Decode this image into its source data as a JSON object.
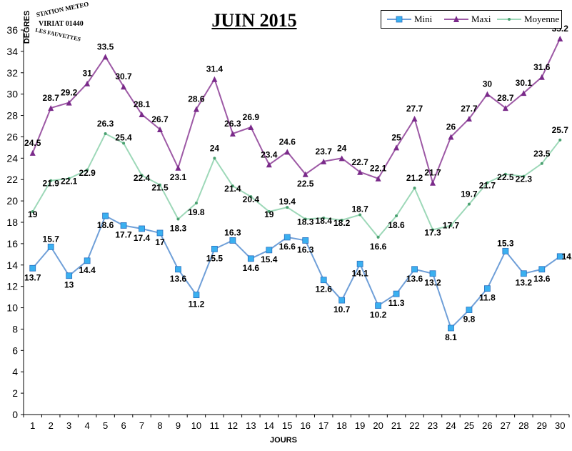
{
  "stamp": {
    "line1": "STATION METEO",
    "line2": "VIRIAT 01440",
    "line3": "LES FAUVETTES"
  },
  "chart_data": {
    "type": "line",
    "title": "JUIN 2015",
    "xlabel": "JOURS",
    "ylabel": "DEGRES",
    "categories": [
      "1",
      "2",
      "3",
      "4",
      "5",
      "6",
      "7",
      "8",
      "9",
      "10",
      "11",
      "12",
      "13",
      "14",
      "15",
      "16",
      "17",
      "18",
      "19",
      "20",
      "21",
      "22",
      "23",
      "24",
      "25",
      "26",
      "27",
      "28",
      "29",
      "30"
    ],
    "ylim": [
      0,
      36
    ],
    "yticks": [
      0,
      2,
      4,
      6,
      8,
      10,
      12,
      14,
      16,
      18,
      20,
      22,
      24,
      26,
      28,
      30,
      32,
      34,
      36
    ],
    "grid": false,
    "legend_position": "top-right",
    "series": [
      {
        "name": "Mini",
        "color": "#6f9fd8",
        "marker": "square",
        "values": [
          13.7,
          15.7,
          13,
          14.4,
          18.6,
          17.7,
          17.4,
          17,
          13.6,
          11.2,
          15.5,
          16.3,
          14.6,
          15.4,
          16.6,
          16.3,
          12.6,
          10.7,
          14.1,
          10.2,
          11.3,
          13.6,
          13.2,
          8.1,
          9.8,
          11.8,
          15.3,
          13.2,
          13.6,
          14.8
        ]
      },
      {
        "name": "Maxi",
        "color": "#9d59a5",
        "marker": "triangle",
        "values": [
          24.5,
          28.7,
          29.2,
          31,
          33.5,
          30.7,
          28.1,
          26.7,
          23.1,
          28.6,
          31.4,
          26.3,
          26.9,
          23.4,
          24.6,
          22.5,
          23.7,
          24,
          22.7,
          22.1,
          25,
          27.7,
          21.7,
          26,
          27.7,
          30,
          28.7,
          30.1,
          31.6,
          35.2
        ]
      },
      {
        "name": "Moyenne",
        "color": "#9dd8b8",
        "marker": "dot",
        "values": [
          19,
          21.9,
          22.1,
          22.9,
          26.3,
          25.4,
          22.4,
          21.5,
          18.3,
          19.8,
          24,
          21.4,
          20.4,
          19,
          19.4,
          18.3,
          18.4,
          18.2,
          18.7,
          16.6,
          18.6,
          21.2,
          17.3,
          17.7,
          19.7,
          21.7,
          22.5,
          22.3,
          23.5,
          25.7
        ]
      }
    ]
  }
}
